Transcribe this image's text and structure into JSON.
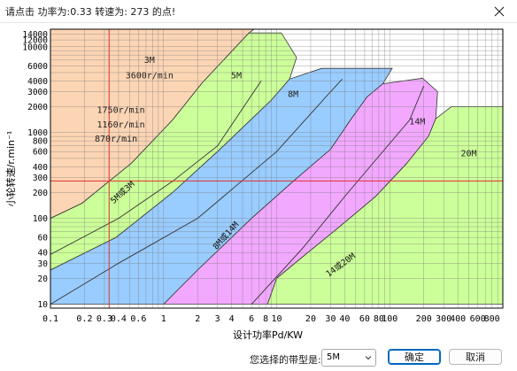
{
  "window": {
    "title": "请点击 功率为:0.33  转速为: 273 的点!"
  },
  "footer": {
    "select_label": "您选择的带型是:",
    "select_value": "5M",
    "ok_label": "确定",
    "cancel_label": "取消"
  },
  "chart_data": {
    "type": "area",
    "xlabel": "设计功率Pd/KW",
    "ylabel": "小轮转速/r.min⁻¹",
    "x_scale": "log",
    "y_scale": "log",
    "xlim": [
      0.1,
      1000
    ],
    "ylim": [
      9,
      16000
    ],
    "grid": true,
    "x_ticks": [
      {
        "v": 0.1,
        "l": "0.1"
      },
      {
        "v": 0.2,
        "l": "0.2"
      },
      {
        "v": 0.3,
        "l": "0.3"
      },
      {
        "v": 0.4,
        "l": "0.4"
      },
      {
        "v": 0.6,
        "l": "0.6"
      },
      {
        "v": 1,
        "l": "1"
      },
      {
        "v": 2,
        "l": "2"
      },
      {
        "v": 3,
        "l": "3"
      },
      {
        "v": 4,
        "l": "4"
      },
      {
        "v": 6,
        "l": "6"
      },
      {
        "v": 8,
        "l": "8"
      },
      {
        "v": 10,
        "l": "10"
      },
      {
        "v": 20,
        "l": "20"
      },
      {
        "v": 30,
        "l": "30"
      },
      {
        "v": 40,
        "l": "40"
      },
      {
        "v": 60,
        "l": "60"
      },
      {
        "v": 80,
        "l": "80"
      },
      {
        "v": 100,
        "l": "100"
      },
      {
        "v": 200,
        "l": "200"
      },
      {
        "v": 300,
        "l": "300"
      },
      {
        "v": 400,
        "l": "400"
      },
      {
        "v": 600,
        "l": "600"
      },
      {
        "v": 800,
        "l": "800"
      }
    ],
    "y_ticks": [
      {
        "v": 10,
        "l": "10"
      },
      {
        "v": 20,
        "l": "20"
      },
      {
        "v": 30,
        "l": "30"
      },
      {
        "v": 40,
        "l": "40"
      },
      {
        "v": 60,
        "l": "60"
      },
      {
        "v": 100,
        "l": "100"
      },
      {
        "v": 200,
        "l": "200"
      },
      {
        "v": 300,
        "l": "300"
      },
      {
        "v": 400,
        "l": "400"
      },
      {
        "v": 600,
        "l": "600"
      },
      {
        "v": 800,
        "l": "800"
      },
      {
        "v": 1000,
        "l": "1000"
      },
      {
        "v": 2000,
        "l": "2000"
      },
      {
        "v": 3000,
        "l": "3000"
      },
      {
        "v": 4000,
        "l": "4000"
      },
      {
        "v": 6000,
        "l": "6000"
      },
      {
        "v": 10000,
        "l": "10000"
      },
      {
        "v": 12000,
        "l": "12000"
      },
      {
        "v": 14000,
        "l": "14000"
      }
    ],
    "regions": [
      {
        "name": "3M",
        "color": "#fcd5b4",
        "points": [
          [
            0.1,
            100
          ],
          [
            0.1,
            16000
          ],
          [
            6.3,
            16000
          ],
          [
            5.7,
            14500
          ],
          [
            2.2,
            3800
          ],
          [
            1.2,
            1400
          ],
          [
            0.52,
            440
          ],
          [
            0.19,
            150
          ]
        ]
      },
      {
        "name": "5M",
        "color": "#ccff99",
        "points": [
          [
            0.1,
            25
          ],
          [
            0.1,
            100
          ],
          [
            0.19,
            150
          ],
          [
            0.52,
            440
          ],
          [
            1.2,
            1400
          ],
          [
            2.2,
            3800
          ],
          [
            5.7,
            14500
          ],
          [
            11,
            14500
          ],
          [
            15,
            7500
          ],
          [
            13,
            4200
          ],
          [
            9,
            2400
          ],
          [
            3,
            600
          ],
          [
            1.2,
            200
          ],
          [
            0.38,
            60
          ]
        ]
      },
      {
        "name": "8M",
        "color": "#99ccff",
        "points": [
          [
            0.1,
            10
          ],
          [
            0.1,
            25
          ],
          [
            0.38,
            60
          ],
          [
            1.2,
            200
          ],
          [
            3,
            600
          ],
          [
            9,
            2400
          ],
          [
            13,
            4200
          ],
          [
            25,
            5600
          ],
          [
            105,
            5600
          ],
          [
            87,
            3700
          ],
          [
            63,
            2600
          ],
          [
            45,
            1400
          ],
          [
            30,
            640
          ],
          [
            14,
            270
          ],
          [
            6,
            100
          ],
          [
            2,
            25
          ],
          [
            1,
            10
          ]
        ]
      },
      {
        "name": "14M",
        "color": "#f2a8ff",
        "points": [
          [
            1,
            10
          ],
          [
            2,
            25
          ],
          [
            6,
            100
          ],
          [
            14,
            270
          ],
          [
            30,
            640
          ],
          [
            45,
            1400
          ],
          [
            63,
            2600
          ],
          [
            87,
            3700
          ],
          [
            195,
            4300
          ],
          [
            265,
            3000
          ],
          [
            255,
            1450
          ],
          [
            220,
            900
          ],
          [
            140,
            430
          ],
          [
            75,
            180
          ],
          [
            34,
            75
          ],
          [
            18,
            38
          ],
          [
            10,
            20
          ],
          [
            8.3,
            10
          ]
        ]
      },
      {
        "name": "20M",
        "color": "#ccff99",
        "points": [
          [
            8.3,
            10
          ],
          [
            10,
            20
          ],
          [
            18,
            38
          ],
          [
            34,
            75
          ],
          [
            75,
            180
          ],
          [
            140,
            430
          ],
          [
            220,
            900
          ],
          [
            255,
            1450
          ],
          [
            350,
            2000
          ],
          [
            1000,
            2000
          ],
          [
            1000,
            10
          ],
          [
            230,
            10
          ]
        ]
      }
    ],
    "divider_lines": [
      {
        "name": "5M或3M",
        "points": [
          [
            0.1,
            38
          ],
          [
            0.4,
            100
          ],
          [
            1.2,
            270
          ],
          [
            3,
            700
          ],
          [
            7.3,
            4000
          ]
        ]
      },
      {
        "name": "8M或14M",
        "points": [
          [
            0.1,
            10
          ],
          [
            0.4,
            30
          ],
          [
            2,
            100
          ],
          [
            10,
            600
          ],
          [
            30,
            3000
          ],
          [
            38,
            4200
          ]
        ]
      },
      {
        "name": "14或20M",
        "points": [
          [
            6,
            10
          ],
          [
            17,
            45
          ],
          [
            40,
            180
          ],
          [
            150,
            1400
          ],
          [
            200,
            3500
          ]
        ]
      }
    ],
    "region_labels": [
      {
        "text": "3M",
        "x": 0.75,
        "y": 6500
      },
      {
        "text": "3600r/min",
        "x": 0.75,
        "y": 4300
      },
      {
        "text": "5M",
        "x": 4.4,
        "y": 4300
      },
      {
        "text": "8M",
        "x": 14,
        "y": 2600
      },
      {
        "text": "14M",
        "x": 175,
        "y": 1250
      },
      {
        "text": "20M",
        "x": 500,
        "y": 530
      },
      {
        "text": "1750r/min",
        "x": 0.42,
        "y": 1700
      },
      {
        "text": "1160r/min",
        "x": 0.42,
        "y": 1150
      },
      {
        "text": "870r/min",
        "x": 0.38,
        "y": 780
      }
    ],
    "slanted_labels": [
      {
        "text": "5M或3M",
        "x": 0.45,
        "y": 190,
        "angle": -42
      },
      {
        "text": "8M或14M",
        "x": 3.7,
        "y": 60,
        "angle": -48
      },
      {
        "text": "14或20M",
        "x": 38,
        "y": 27,
        "angle": -36
      }
    ],
    "crosshair": {
      "x": 0.33,
      "y": 273,
      "color": "#e03030"
    }
  }
}
